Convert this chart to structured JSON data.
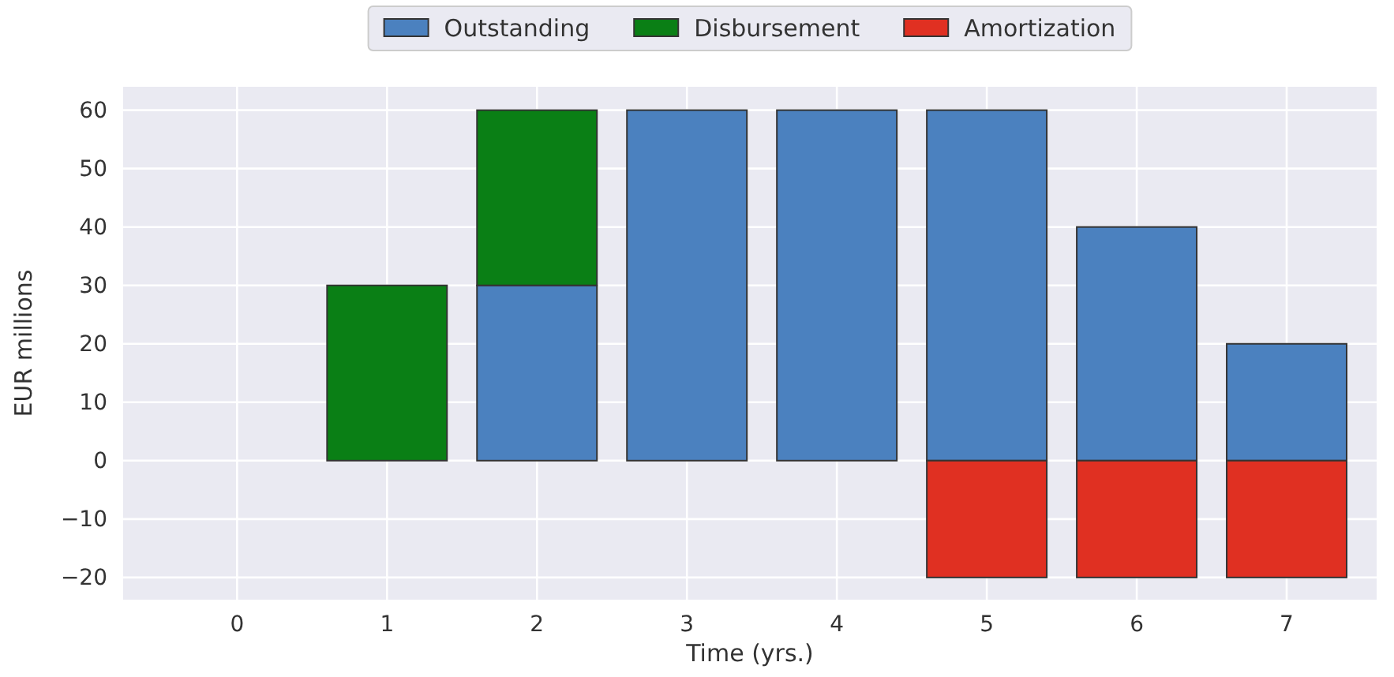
{
  "chart_data": {
    "type": "bar",
    "xlabel": "Time (yrs.)",
    "ylabel": "EUR millions",
    "x": [
      0,
      1,
      2,
      3,
      4,
      5,
      6,
      7
    ],
    "xlim": [
      -0.76,
      7.6
    ],
    "xticks": [
      0,
      1,
      2,
      3,
      4,
      5,
      6,
      7
    ],
    "ylim": [
      -23.8,
      64
    ],
    "yticks": [
      {
        "value": -20,
        "label": "−20"
      },
      {
        "value": -10,
        "label": "−10"
      },
      0,
      10,
      20,
      30,
      40,
      50,
      60
    ],
    "stacked": true,
    "grid": true,
    "legend": "top",
    "series": [
      {
        "name": "Outstanding",
        "color": "#4b81bf",
        "values": [
          null,
          null,
          30,
          60,
          60,
          60,
          40,
          20
        ]
      },
      {
        "name": "Disbursement",
        "color": "#0a7f15",
        "values": [
          0,
          30,
          30,
          null,
          null,
          null,
          null,
          null
        ]
      },
      {
        "name": "Amortization",
        "color": "#e03022",
        "values": [
          null,
          null,
          null,
          null,
          null,
          -20,
          -20,
          -20
        ]
      }
    ]
  }
}
